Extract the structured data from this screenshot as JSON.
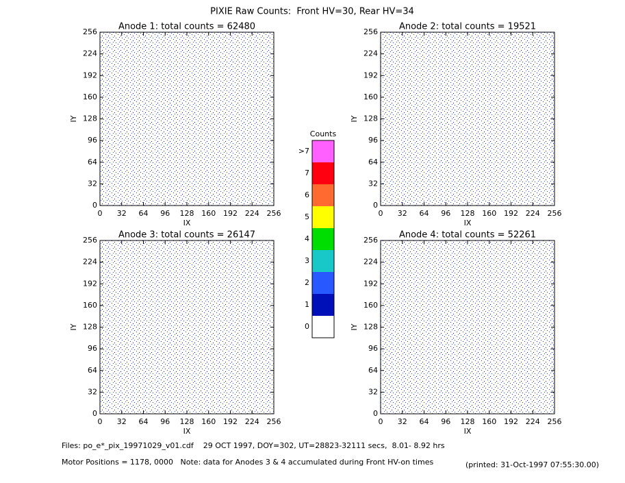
{
  "title": "PIXIE Raw Counts:  Front HV=30, Rear HV=34",
  "chart_data": [
    {
      "type": "heatmap",
      "title": "Anode 1: total counts = 62480",
      "xlabel": "IX",
      "ylabel": "IY",
      "xlim": [
        0,
        256
      ],
      "ylim": [
        0,
        256
      ],
      "xticks": [
        0,
        32,
        64,
        96,
        128,
        160,
        192,
        224,
        256
      ],
      "yticks": [
        0,
        32,
        64,
        96,
        128,
        160,
        192,
        224,
        256
      ]
    },
    {
      "type": "heatmap",
      "title": "Anode 2: total counts = 19521",
      "xlabel": "IX",
      "ylabel": "IY",
      "xlim": [
        0,
        256
      ],
      "ylim": [
        0,
        256
      ],
      "xticks": [
        0,
        32,
        64,
        96,
        128,
        160,
        192,
        224,
        256
      ],
      "yticks": [
        0,
        32,
        64,
        96,
        128,
        160,
        192,
        224,
        256
      ]
    },
    {
      "type": "heatmap",
      "title": "Anode 3: total counts = 26147",
      "xlabel": "IX",
      "ylabel": "IY",
      "xlim": [
        0,
        256
      ],
      "ylim": [
        0,
        256
      ],
      "xticks": [
        0,
        32,
        64,
        96,
        128,
        160,
        192,
        224,
        256
      ],
      "yticks": [
        0,
        32,
        64,
        96,
        128,
        160,
        192,
        224,
        256
      ]
    },
    {
      "type": "heatmap",
      "title": "Anode 4: total counts = 52261",
      "xlabel": "IX",
      "ylabel": "IY",
      "xlim": [
        0,
        256
      ],
      "ylim": [
        0,
        256
      ],
      "xticks": [
        0,
        32,
        64,
        96,
        128,
        160,
        192,
        224,
        256
      ],
      "yticks": [
        0,
        32,
        64,
        96,
        128,
        160,
        192,
        224,
        256
      ]
    }
  ],
  "colorbar": {
    "title": "Counts",
    "levels": [
      0,
      1,
      2,
      3,
      4,
      5,
      6,
      7,
      ">7"
    ],
    "colors": [
      "#ffffff",
      "#0010b8",
      "#2858ff",
      "#18c8c8",
      "#00dd00",
      "#ffff00",
      "#ff6a30",
      "#ff0010",
      "#ff60ff"
    ]
  },
  "footer": {
    "files": "Files: po_e*_pix_19971029_v01.cdf    29 OCT 1997, DOY=302, UT=28823-32111 secs,  8.01- 8.92 hrs",
    "motor": "Motor Positions = 1178, 0000   Note: data for Anodes 3 & 4 accumulated during Front HV-on times",
    "printed": "(printed: 31-Oct-1997 07:55:30.00)"
  }
}
